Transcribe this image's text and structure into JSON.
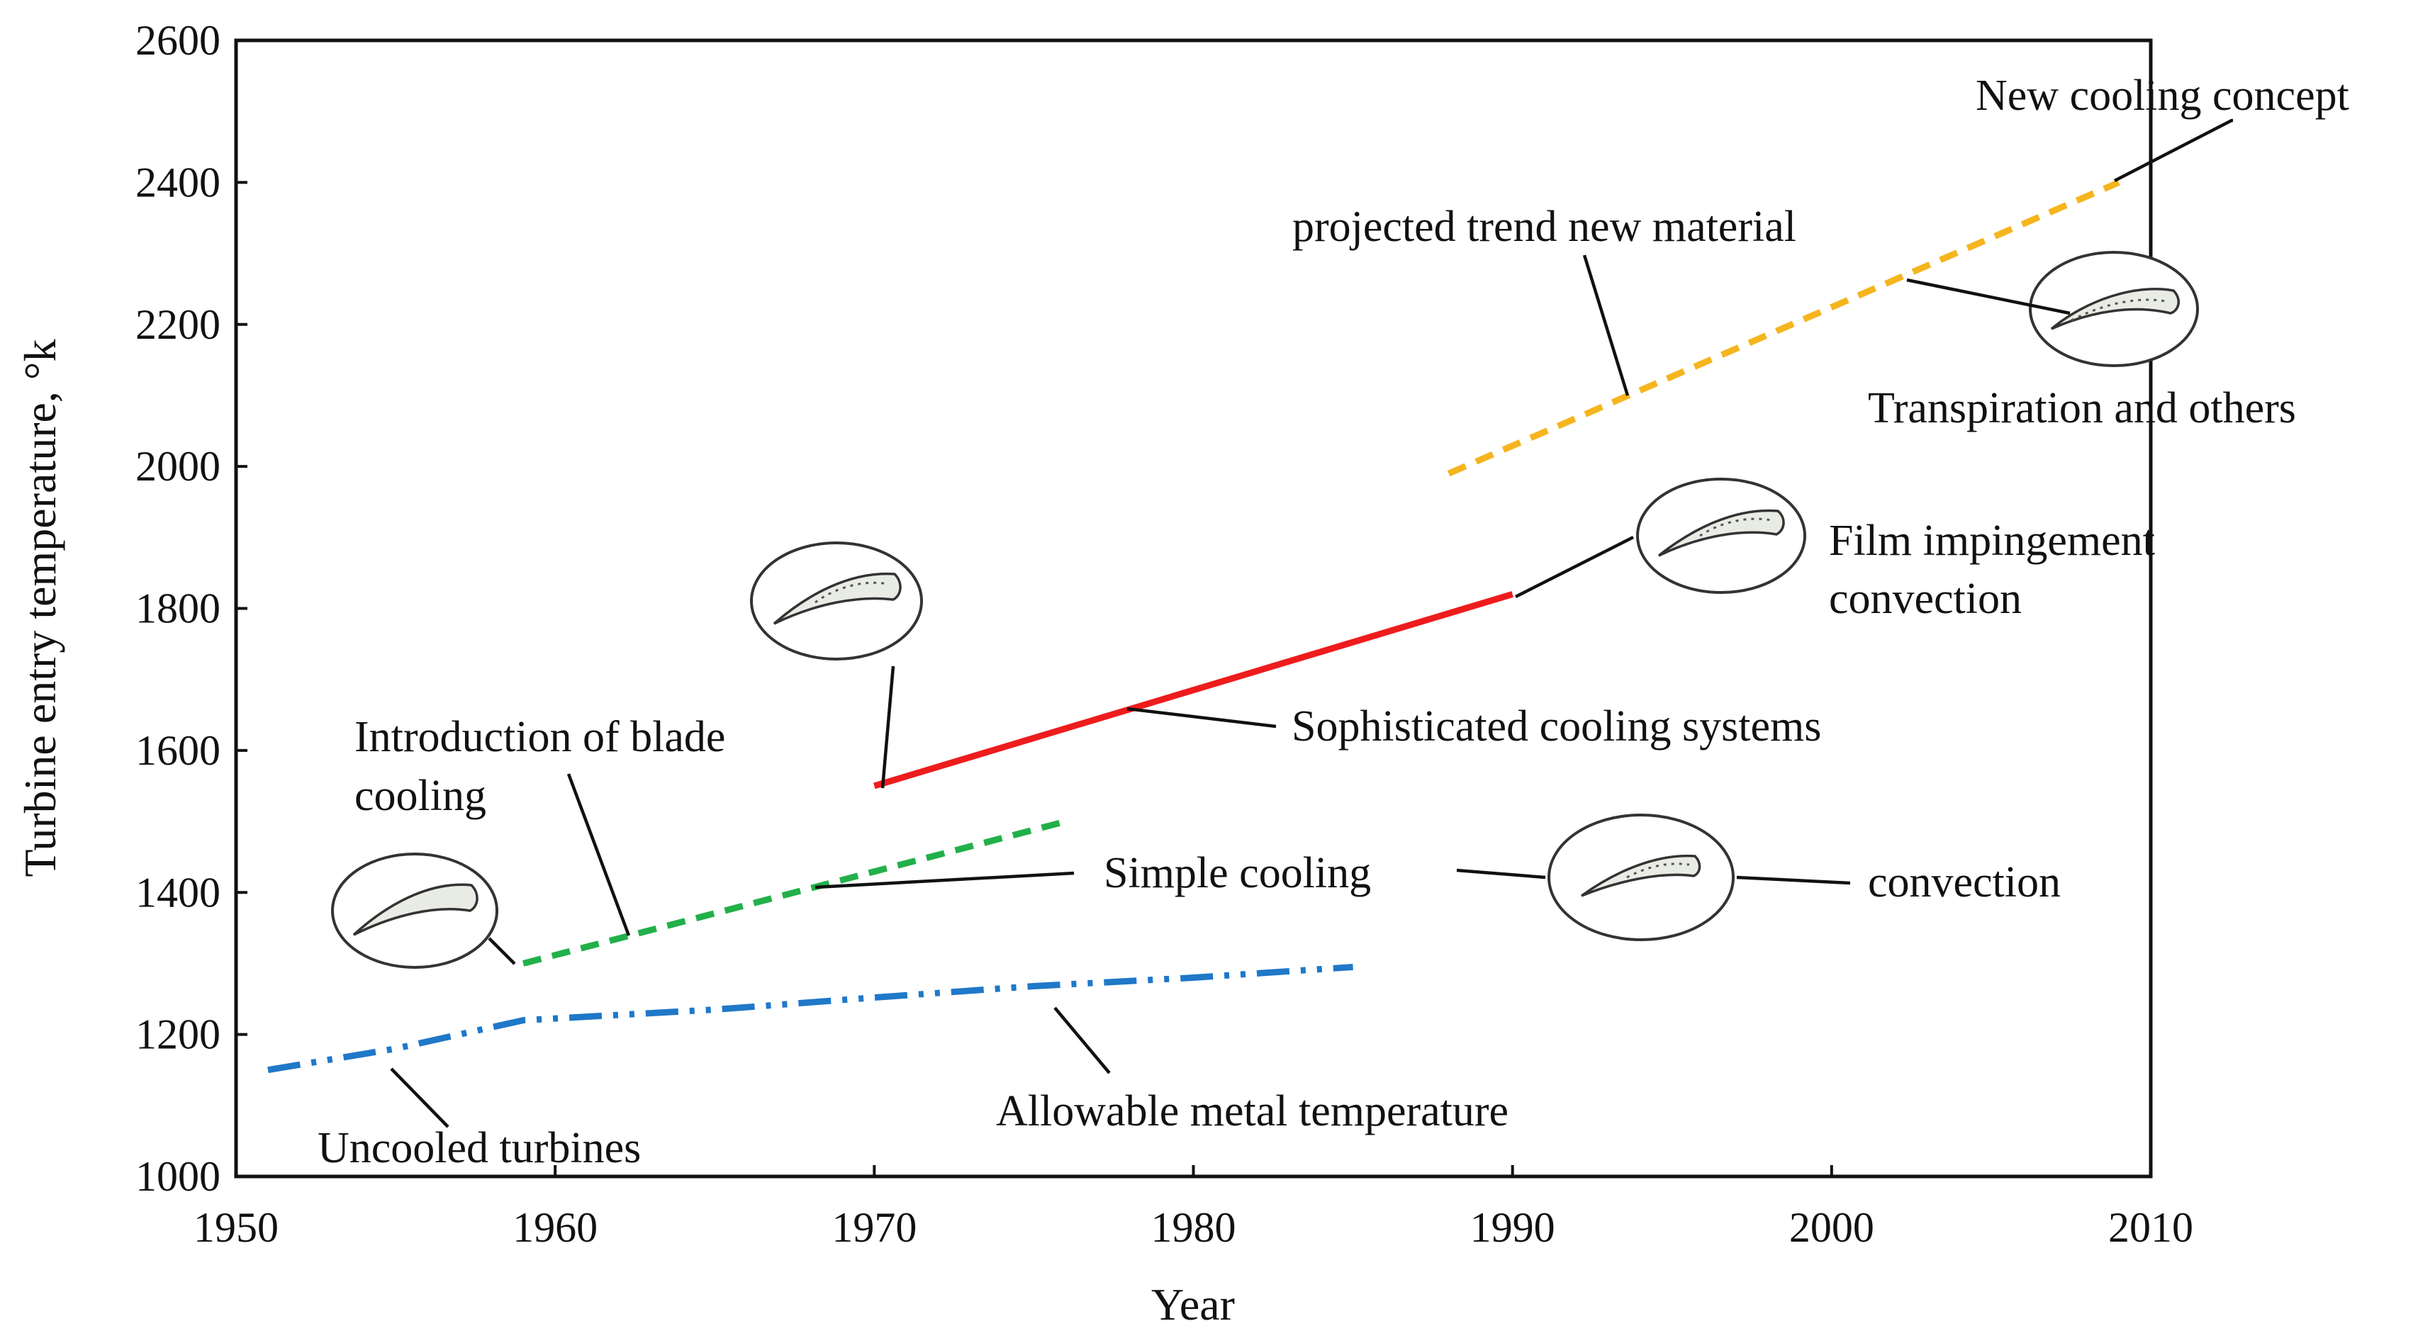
{
  "chart_data": {
    "type": "line",
    "title": "",
    "xlabel": "Year",
    "ylabel": "Turbine entry temperature, °k",
    "xlim": [
      1950,
      2010
    ],
    "ylim": [
      1000,
      2600
    ],
    "xticks": [
      "1950",
      "1960",
      "1970",
      "1980",
      "1990",
      "2000",
      "2010"
    ],
    "yticks": [
      "1000",
      "1200",
      "1400",
      "1600",
      "1800",
      "2000",
      "2200",
      "2400",
      "2600"
    ],
    "grid": false,
    "series": [
      {
        "name": "Uncooled turbines / Allowable metal temperature",
        "color": "#1f78c8",
        "style": "dashdotdot",
        "points": [
          [
            1951,
            1150
          ],
          [
            1955,
            1180
          ],
          [
            1959,
            1220
          ],
          [
            1965,
            1235
          ],
          [
            1970,
            1252
          ],
          [
            1975,
            1268
          ],
          [
            1980,
            1280
          ],
          [
            1985,
            1295
          ]
        ]
      },
      {
        "name": "Simple cooling",
        "color": "#22b04a",
        "style": "dashed",
        "points": [
          [
            1959,
            1300
          ],
          [
            1976,
            1500
          ]
        ]
      },
      {
        "name": "Sophisticated cooling systems",
        "color": "#ee1c1c",
        "style": "solid",
        "points": [
          [
            1970,
            1550
          ],
          [
            1990,
            1820
          ]
        ]
      },
      {
        "name": "projected trend new material",
        "color": "#f5b51e",
        "style": "dashed",
        "points": [
          [
            1988,
            1990
          ],
          [
            2009,
            2400
          ]
        ]
      }
    ],
    "annotations": [
      "New cooling concept",
      "projected trend new material",
      "Transpiration and others",
      "Film impingement",
      "convection",
      "Sophisticated cooling systems",
      "Introduction of blade",
      "cooling",
      "Simple cooling",
      "convection",
      "Allowable metal temperature",
      "Uncooled turbines"
    ]
  }
}
